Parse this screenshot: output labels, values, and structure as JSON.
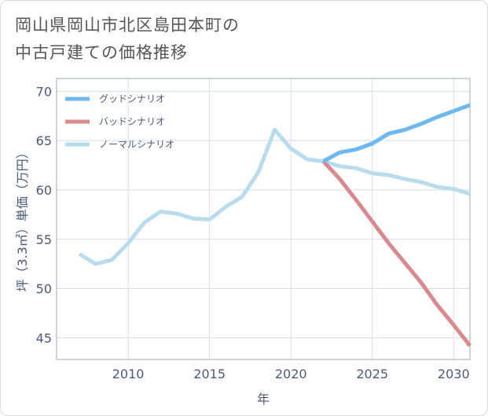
{
  "chart_data": {
    "type": "line",
    "title": [
      "岡山県岡山市北区島田本町の",
      "中古戸建ての価格推移"
    ],
    "xlabel": "年",
    "ylabel": "坪（3.3㎡）単価（万円）",
    "xlim": [
      2005.6,
      2031
    ],
    "ylim": [
      42.8,
      71.3
    ],
    "xticks": [
      2010,
      2015,
      2020,
      2025,
      2030
    ],
    "yticks": [
      45,
      50,
      55,
      60,
      65,
      70
    ],
    "grid": true,
    "legend_position": "top-left",
    "series": [
      {
        "name": "グッドシナリオ",
        "color": "#6cb8ef",
        "x": [
          2022,
          2023,
          2024,
          2025,
          2026,
          2027,
          2028,
          2029,
          2030,
          2031
        ],
        "values": [
          62.9,
          63.8,
          64.1,
          64.7,
          65.7,
          66.1,
          66.7,
          67.4,
          68.0,
          68.6
        ]
      },
      {
        "name": "バッドシナリオ",
        "color": "#d98a8f",
        "x": [
          2022,
          2023,
          2024,
          2025,
          2026,
          2027,
          2028,
          2029,
          2030,
          2031
        ],
        "values": [
          62.9,
          61.1,
          59.0,
          56.8,
          54.6,
          52.6,
          50.6,
          48.3,
          46.3,
          44.2
        ]
      },
      {
        "name": "ノーマルシナリオ",
        "color": "#b9dcec",
        "x": [
          2007,
          2008,
          2009,
          2010,
          2011,
          2012,
          2013,
          2014,
          2015,
          2016,
          2017,
          2018,
          2019,
          2020,
          2021,
          2022,
          2023,
          2024,
          2025,
          2026,
          2027,
          2028,
          2029,
          2030,
          2031
        ],
        "values": [
          53.5,
          52.5,
          52.9,
          54.6,
          56.7,
          57.8,
          57.6,
          57.1,
          57.0,
          58.3,
          59.3,
          61.8,
          66.1,
          64.2,
          63.1,
          62.9,
          62.4,
          62.2,
          61.7,
          61.5,
          61.1,
          60.8,
          60.3,
          60.1,
          59.6
        ]
      }
    ]
  }
}
